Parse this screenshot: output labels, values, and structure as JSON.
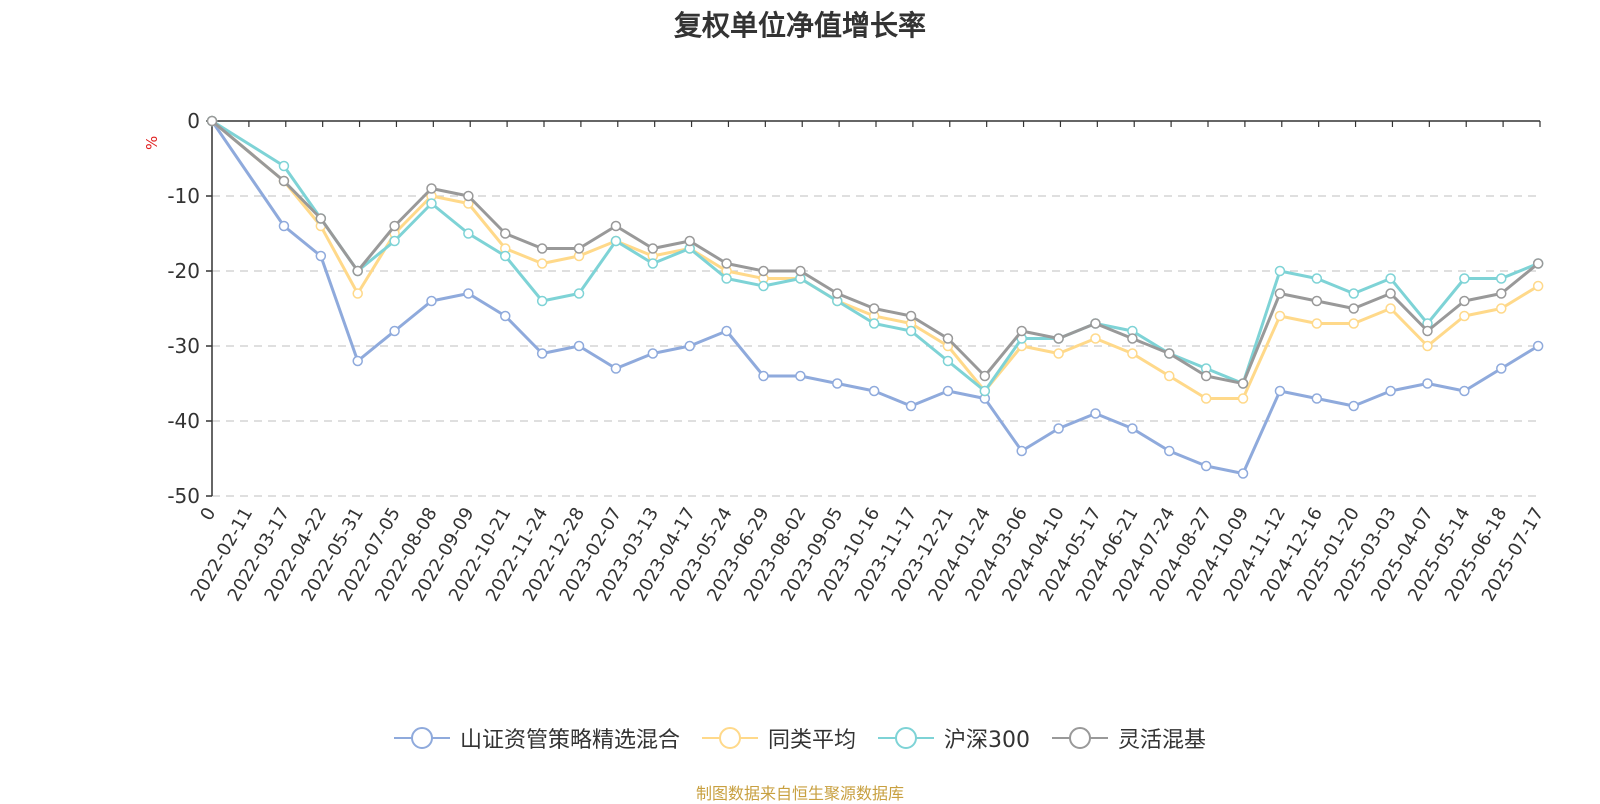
{
  "title": "复权单位净值增长率",
  "source": "制图数据来自恒生聚源数据库",
  "colors": {
    "fund": "#8faadc",
    "peer": "#ffd98a",
    "hs300": "#7ed3d6",
    "flex": "#999999",
    "grid": "#cccccc",
    "axis": "#333333"
  },
  "chart_data": {
    "type": "line",
    "title": "复权单位净值增长率",
    "ylabel": "%",
    "ylim": [
      -50,
      0
    ],
    "yticks": [
      "0",
      "-10",
      "-20",
      "-30",
      "-40",
      "-50"
    ],
    "y_tick_values": [
      0,
      -10,
      -20,
      -30,
      -40,
      -50
    ],
    "x_start_label": "0",
    "x_labels": [
      "2022-02-11",
      "2022-03-17",
      "2022-04-22",
      "2022-05-31",
      "2022-07-05",
      "2022-08-08",
      "2022-09-09",
      "2022-10-21",
      "2022-11-24",
      "2022-12-28",
      "2023-02-07",
      "2023-03-13",
      "2023-04-17",
      "2023-05-24",
      "2023-06-29",
      "2023-08-02",
      "2023-09-05",
      "2023-10-16",
      "2023-11-17",
      "2023-12-21",
      "2024-01-24",
      "2024-03-06",
      "2024-04-10",
      "2024-05-17",
      "2024-06-21",
      "2024-07-24",
      "2024-08-27",
      "2024-10-09",
      "2024-11-12",
      "2024-12-16",
      "2025-01-20",
      "2025-03-03",
      "2025-04-07",
      "2025-05-14",
      "2025-06-18",
      "2025-07-17"
    ],
    "grid": true,
    "legend_position": "bottom",
    "series": [
      {
        "name": "山证资管策略精选混合",
        "key": "fund",
        "values": [
          0,
          -14,
          -18,
          -32,
          -28,
          -24,
          -23,
          -26,
          -31,
          -30,
          -33,
          -31,
          -30,
          -28,
          -34,
          -34,
          -35,
          -36,
          -38,
          -36,
          -37,
          -44,
          -41,
          -39,
          -41,
          -44,
          -46,
          -47,
          -36,
          -37,
          -38,
          -36,
          -35,
          -36,
          -33,
          -30
        ]
      },
      {
        "name": "同类平均",
        "key": "peer",
        "values": [
          0,
          -8,
          -14,
          -23,
          -15,
          -10,
          -11,
          -17,
          -19,
          -18,
          -16,
          -18,
          -17,
          -20,
          -21,
          -21,
          -24,
          -26,
          -27,
          -30,
          -36,
          -30,
          -31,
          -29,
          -31,
          -34,
          -37,
          -37,
          -26,
          -27,
          -27,
          -25,
          -30,
          -26,
          -25,
          -22
        ]
      },
      {
        "name": "沪深300",
        "key": "hs300",
        "values": [
          0,
          -6,
          -13,
          -20,
          -16,
          -11,
          -15,
          -18,
          -24,
          -23,
          -16,
          -19,
          -17,
          -21,
          -22,
          -21,
          -24,
          -27,
          -28,
          -32,
          -36,
          -29,
          -29,
          -27,
          -28,
          -31,
          -33,
          -35,
          -20,
          -21,
          -23,
          -21,
          -27,
          -21,
          -21,
          -19
        ]
      },
      {
        "name": "灵活混基",
        "key": "flex",
        "values": [
          0,
          -8,
          -13,
          -20,
          -14,
          -9,
          -10,
          -15,
          -17,
          -17,
          -14,
          -17,
          -16,
          -19,
          -20,
          -20,
          -23,
          -25,
          -26,
          -29,
          -34,
          -28,
          -29,
          -27,
          -29,
          -31,
          -34,
          -35,
          -23,
          -24,
          -25,
          -23,
          -28,
          -24,
          -23,
          -19
        ]
      }
    ]
  }
}
